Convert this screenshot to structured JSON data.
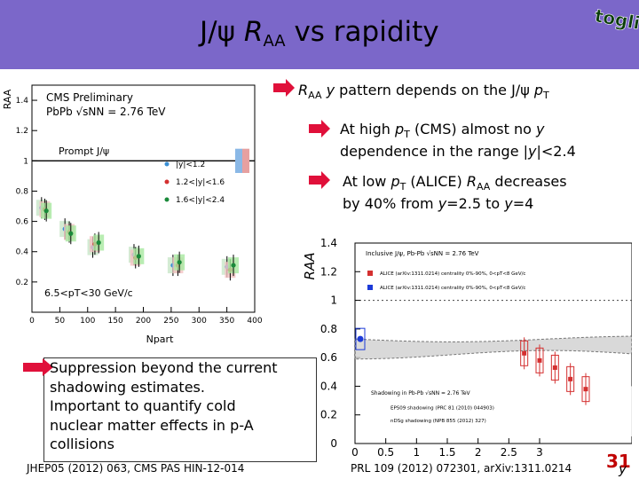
{
  "title": {
    "prefix": "J/",
    "psi": "ψ",
    "raa": "R",
    "raa_sub": "AA",
    "suffix": " vs rapidity"
  },
  "logo": {
    "text": "toglier",
    "colors": {
      "outline": "#3d7f3d",
      "text": "#0b3d0b"
    }
  },
  "bullets": {
    "b1": {
      "r": "R",
      "aa": "AA",
      "rest1": " ",
      "y": "y",
      "rest2": " pattern depends on the J/",
      "psi": "ψ",
      "p": " p",
      "t": "T"
    },
    "b2": {
      "line1a": "At high ",
      "pt": "p",
      "t": "T",
      "line1b": " (CMS) almost no ",
      "y": "y",
      "line2a": "dependence in the range |",
      "y2": "y",
      "line2b": "|<2.4"
    },
    "b3": {
      "line1a": "At low ",
      "pt": "p",
      "t": "T",
      "line1b": " (ALICE) ",
      "r": "R",
      "aa": "AA",
      "line1c": " decreases",
      "line2a": "by 40% from ",
      "y1": "y",
      "line2b": "=2.5 to ",
      "y2": "y",
      "line2c": "=4"
    }
  },
  "suppression": {
    "line1": "Suppression beyond the current",
    "line2": "shadowing estimates.",
    "line3": "Important to quantify cold",
    "line4": "nuclear matter effects in p-A",
    "line5": "collisions"
  },
  "refs": {
    "left": "JHEP05 (2012) 063, CMS PAS HIN-12-014",
    "right": "PRL 109 (2012) 072301, arXiv:1311.0214"
  },
  "page_number": "31",
  "corner_y": "y",
  "colors": {
    "band": "#7b67c9",
    "arrow": "#e0103a",
    "page": "#c00000"
  },
  "chart_data": [
    {
      "type": "scatter",
      "title": "CMS Preliminary",
      "subtitle": "PbPb √sNN = 2.76 TeV",
      "annotation": "Prompt J/ψ",
      "pt_label": "6.5<pT<30 GeV/c",
      "xlabel": "Npart",
      "ylabel": "RAA",
      "xlim": [
        0,
        400
      ],
      "ylim": [
        0,
        1.5
      ],
      "xticks": [
        "0",
        "50",
        "100",
        "150",
        "200",
        "250",
        "300",
        "350",
        "400"
      ],
      "yticks": [
        "0.2",
        "0.4",
        "0.6",
        "0.8",
        "1",
        "1.2",
        "1.4"
      ],
      "series": [
        {
          "name": "|y|<1.2",
          "color": "#3a8fd4",
          "x": [
            22,
            64,
            114,
            188,
            258,
            355
          ],
          "y": [
            0.69,
            0.55,
            0.43,
            0.38,
            0.31,
            0.3
          ]
        },
        {
          "name": "1.2<|y|<1.6",
          "color": "#d43030",
          "x": [
            23,
            67,
            113,
            186,
            262,
            356
          ],
          "y": [
            0.68,
            0.53,
            0.45,
            0.36,
            0.31,
            0.28
          ]
        },
        {
          "name": "1.6<|y|<2.4",
          "color": "#1a8a3a",
          "x": [
            21,
            65,
            115,
            187,
            260,
            357
          ],
          "y": [
            0.67,
            0.52,
            0.46,
            0.37,
            0.33,
            0.31
          ]
        }
      ]
    },
    {
      "type": "scatter",
      "title": "Inclusive J/ψ, Pb-Pb √sNN = 2.76 TeV",
      "xlabel": "y",
      "ylabel": "RAA",
      "xlim": [
        0,
        4.5
      ],
      "ylim": [
        0,
        1.4
      ],
      "xticks": [
        "0",
        "0.5",
        "1",
        "1.5",
        "2",
        "2.5",
        "3"
      ],
      "yticks": [
        "0",
        "0.2",
        "0.4",
        "0.6",
        "0.8",
        "1",
        "1.2",
        "1.4"
      ],
      "legend": [
        {
          "label": "ALICE (arXiv:1311.0214) centrality 0%-90%, 0<pT<8 GeV/c",
          "color": "#d43030"
        },
        {
          "label": "ALICE (arXiv:1311.0214) centrality 0%-90%, 0<pT<8 GeV/c",
          "color": "#1c3ad8"
        }
      ],
      "shadow_label1": "Shadowing in Pb-Pb √sNN = 2.76 TeV",
      "shadow_label2": "EPS09 shadowing (PRC 81 (2010) 044903)",
      "shadow_label3": "nDSg shadowing (NPB 855 (2012) 327)",
      "series": [
        {
          "name": "ALICE forward",
          "color": "#d43030",
          "x": [
            2.75,
            3.0,
            3.25,
            3.5,
            3.75
          ],
          "y": [
            0.63,
            0.58,
            0.53,
            0.45,
            0.38
          ]
        },
        {
          "name": "ALICE mid",
          "color": "#1c3ad8",
          "x": [
            0.0
          ],
          "y": [
            0.73
          ]
        }
      ]
    }
  ]
}
